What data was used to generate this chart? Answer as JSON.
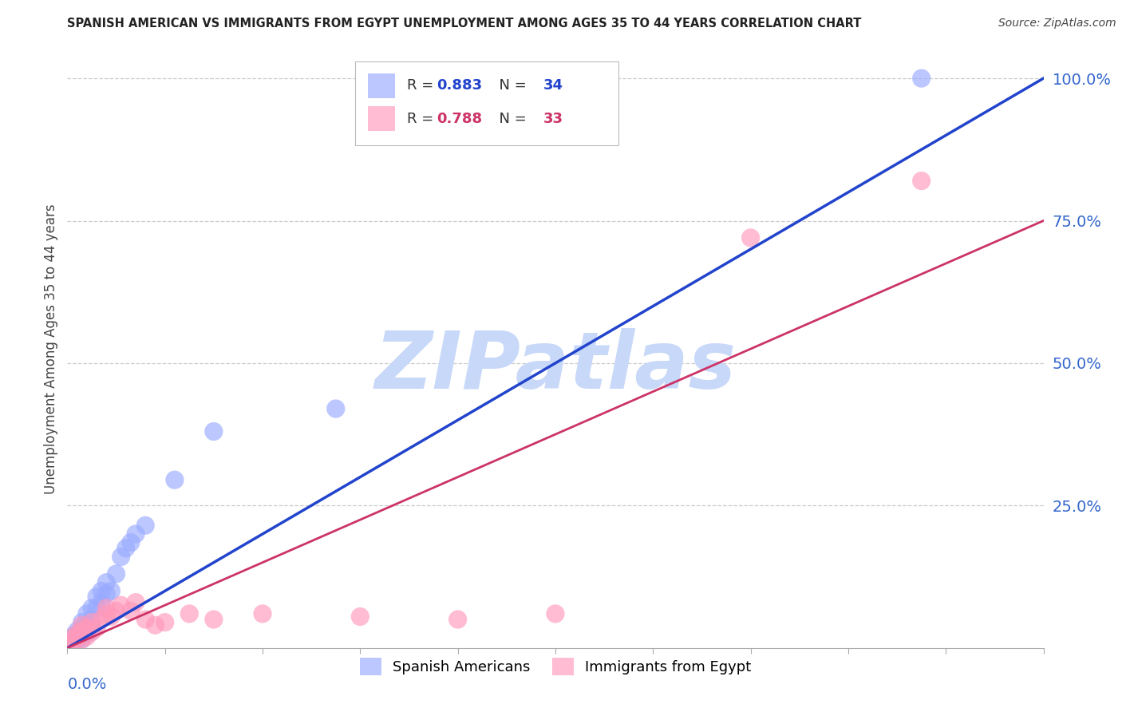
{
  "title": "SPANISH AMERICAN VS IMMIGRANTS FROM EGYPT UNEMPLOYMENT AMONG AGES 35 TO 44 YEARS CORRELATION CHART",
  "source": "Source: ZipAtlas.com",
  "ylabel": "Unemployment Among Ages 35 to 44 years",
  "blue_color": "#99AAFF",
  "pink_color": "#FF99BB",
  "blue_line_color": "#2244CC",
  "pink_line_color": "#CC3366",
  "background_color": "#FFFFFF",
  "watermark_text": "ZIPatlas",
  "watermark_color": "#C8D8F8",
  "grid_color": "#CCCCCC",
  "tick_color": "#3366CC",
  "blue_r": "0.883",
  "blue_n": "34",
  "pink_r": "0.788",
  "pink_n": "33",
  "blue_scatter_x": [
    0.0005,
    0.001,
    0.001,
    0.0015,
    0.002,
    0.002,
    0.002,
    0.003,
    0.003,
    0.003,
    0.003,
    0.004,
    0.004,
    0.004,
    0.005,
    0.005,
    0.005,
    0.006,
    0.006,
    0.007,
    0.007,
    0.008,
    0.008,
    0.009,
    0.01,
    0.011,
    0.012,
    0.013,
    0.014,
    0.016,
    0.022,
    0.03,
    0.055,
    0.175
  ],
  "blue_scatter_y": [
    0.005,
    0.01,
    0.02,
    0.015,
    0.015,
    0.025,
    0.03,
    0.015,
    0.025,
    0.035,
    0.045,
    0.025,
    0.04,
    0.06,
    0.03,
    0.05,
    0.07,
    0.07,
    0.09,
    0.08,
    0.1,
    0.095,
    0.115,
    0.1,
    0.13,
    0.16,
    0.175,
    0.185,
    0.2,
    0.215,
    0.295,
    0.38,
    0.42,
    1.0
  ],
  "pink_scatter_x": [
    0.0005,
    0.001,
    0.001,
    0.0015,
    0.002,
    0.002,
    0.003,
    0.003,
    0.003,
    0.004,
    0.004,
    0.005,
    0.005,
    0.006,
    0.007,
    0.008,
    0.008,
    0.009,
    0.01,
    0.011,
    0.013,
    0.014,
    0.016,
    0.018,
    0.02,
    0.025,
    0.03,
    0.04,
    0.06,
    0.08,
    0.1,
    0.14,
    0.175
  ],
  "pink_scatter_y": [
    0.005,
    0.01,
    0.018,
    0.012,
    0.018,
    0.025,
    0.015,
    0.03,
    0.04,
    0.02,
    0.035,
    0.028,
    0.045,
    0.035,
    0.05,
    0.06,
    0.07,
    0.055,
    0.065,
    0.075,
    0.065,
    0.08,
    0.05,
    0.04,
    0.045,
    0.06,
    0.05,
    0.06,
    0.055,
    0.05,
    0.06,
    0.72,
    0.82
  ],
  "blue_line_x": [
    0.0,
    0.2
  ],
  "blue_line_y": [
    0.0,
    1.0
  ],
  "pink_line_x": [
    0.0,
    0.2
  ],
  "pink_line_y": [
    0.0,
    0.75
  ],
  "xlim": [
    0.0,
    0.2
  ],
  "ylim": [
    0.0,
    1.05
  ],
  "y_ticks": [
    0.25,
    0.5,
    0.75,
    1.0
  ],
  "y_tick_labels": [
    "25.0%",
    "50.0%",
    "75.0%",
    "100.0%"
  ],
  "x_tick_positions": [
    0.0,
    0.02,
    0.04,
    0.06,
    0.08,
    0.1,
    0.12,
    0.14,
    0.16,
    0.18,
    0.2
  ],
  "legend_entries": [
    "Spanish Americans",
    "Immigrants from Egypt"
  ]
}
